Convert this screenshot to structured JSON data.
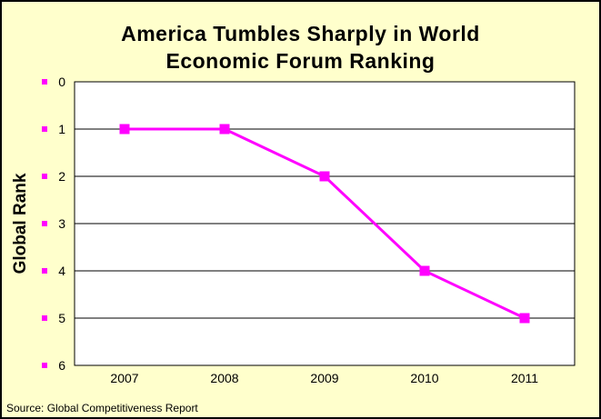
{
  "title_lines": [
    "America Tumbles Sharply in World",
    "Economic Forum Ranking"
  ],
  "source": "Source: Global Competitiveness Report",
  "chart_data": {
    "type": "line",
    "title": "America Tumbles Sharply in World Economic Forum Ranking",
    "categories": [
      "2007",
      "2008",
      "2009",
      "2010",
      "2011"
    ],
    "series": [
      {
        "name": "Global Rank",
        "values": [
          1,
          1,
          2,
          4,
          5
        ]
      }
    ],
    "xlabel": "",
    "ylabel": "Global Rank",
    "ylim": [
      0,
      6
    ],
    "y_ticks": [
      0,
      1,
      2,
      3,
      4,
      5,
      6
    ],
    "y_axis_inverted_display": true,
    "grid": "horizontal",
    "legend": "none",
    "line_color": "#FF00FF",
    "marker": "square",
    "background_color": "#FFFFCC",
    "plot_background": "#FFFFFF",
    "axis_color": "#000000"
  }
}
